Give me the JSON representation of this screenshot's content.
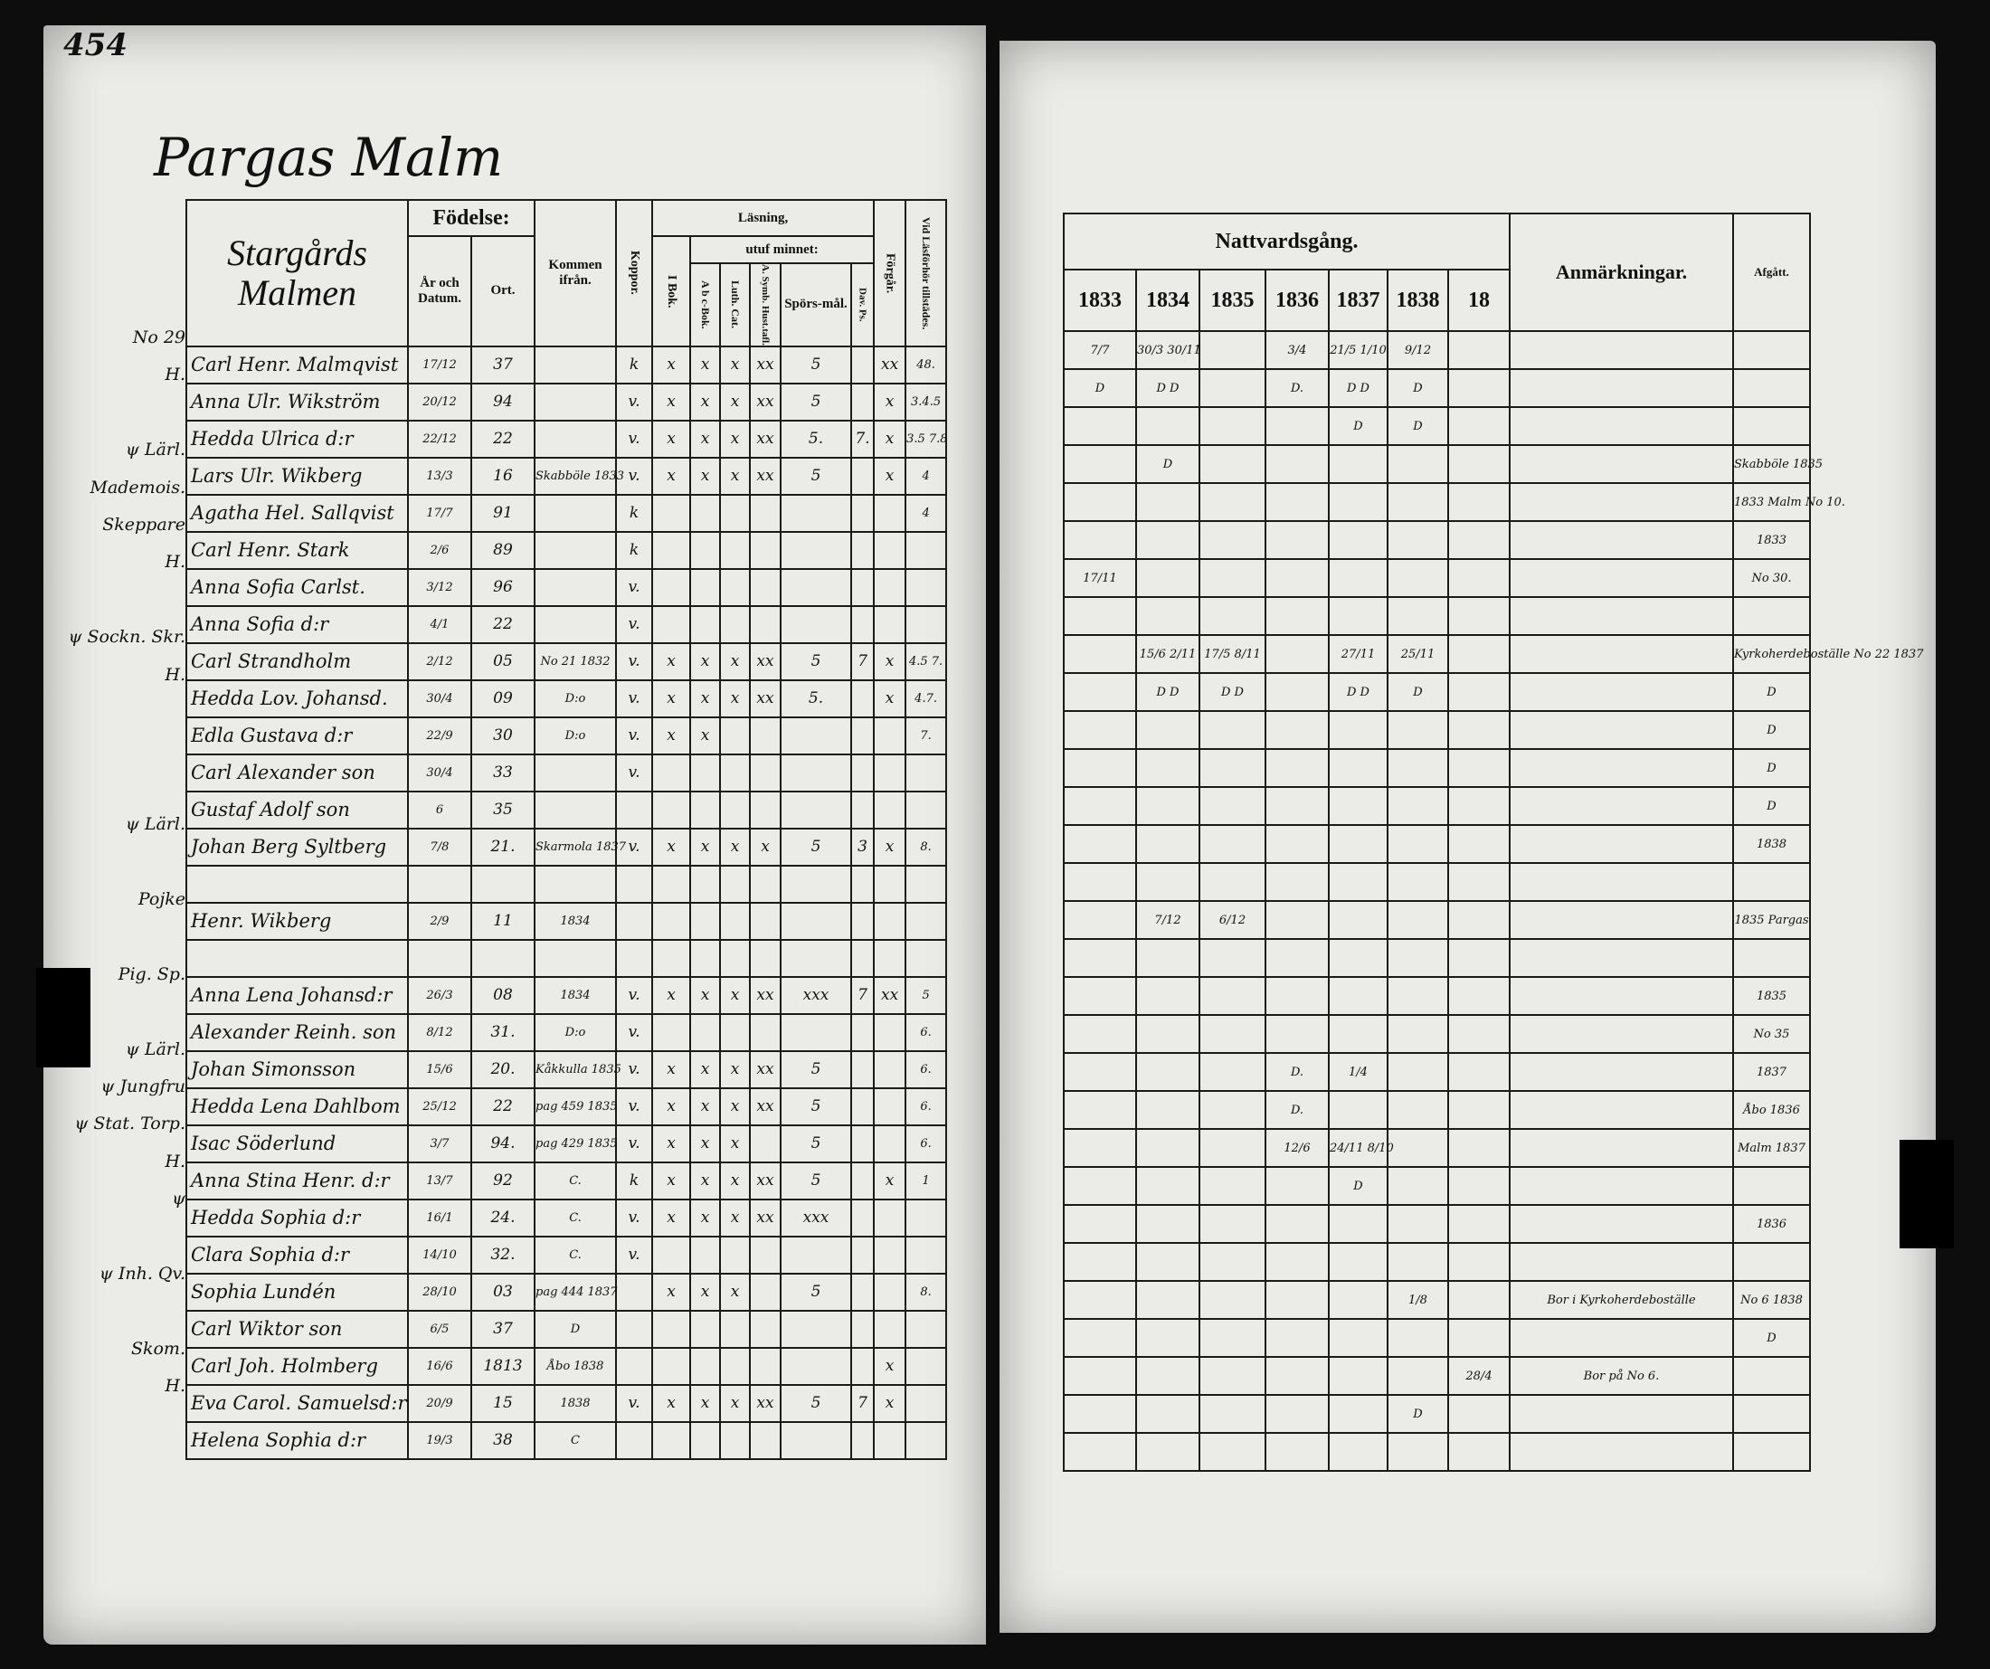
{
  "page_number": "454",
  "place_title": "Pargas Malm",
  "left_header": {
    "section": "Stargårds Malmen",
    "fodelse": "Födelse:",
    "ar_och_datum": "År och Datum.",
    "ort": "Ort.",
    "kommen_ifran": "Kommen ifrån.",
    "koppor": "Koppor.",
    "lasning": "Läsning,",
    "i_bok": "I Bok.",
    "utuf_minnet": "utuf minnet:",
    "abc_bok": "A b c-Bok.",
    "luth_cat": "Luth. Cat.",
    "symb": "A. Symb. Hust.tafl.",
    "sporsmal": "Spörs-mål.",
    "dav_ps": "Dav. Ps.",
    "forgar": "Förgår.",
    "vid_lasforhor": "Vid Läsförhör tillstädes."
  },
  "right_header": {
    "nattvardsgang": "Nattvardsgång.",
    "years": [
      "1833",
      "1834",
      "1835",
      "1836",
      "1837",
      "1838",
      "18"
    ],
    "anmarkningar": "Anmärkningar.",
    "afgatt": "Afgått."
  },
  "rows": [
    {
      "note": "No 29",
      "name": "Carl Henr. Malmqvist",
      "dm": "17/12",
      "yr": "37",
      "kom": "",
      "kop": "k",
      "bok": "x",
      "abc": "x",
      "luth": "x",
      "symb": "xx",
      "spor": "5",
      "dav": "",
      "forg": "xx",
      "vid": "48.",
      "n": [
        "7/7",
        "30/3 30/11",
        "",
        "3/4",
        "21/5 1/10",
        "9/12",
        ""
      ],
      "anm": "",
      "afg": ""
    },
    {
      "note": "H.",
      "name": "Anna Ulr. Wikström",
      "dm": "20/12",
      "yr": "94",
      "kom": "",
      "kop": "v.",
      "bok": "x",
      "abc": "x",
      "luth": "x",
      "symb": "xx",
      "spor": "5",
      "dav": "",
      "forg": "x",
      "vid": "3.4.5",
      "n": [
        "D",
        "D D",
        "",
        "D.",
        "D D",
        "D",
        ""
      ],
      "anm": "",
      "afg": ""
    },
    {
      "note": "",
      "name": "Hedda Ulrica d:r",
      "dm": "22/12",
      "yr": "22",
      "kom": "",
      "kop": "v.",
      "bok": "x",
      "abc": "x",
      "luth": "x",
      "symb": "xx",
      "spor": "5.",
      "dav": "7.",
      "forg": "x",
      "vid": "3.5 7.8",
      "n": [
        "",
        "",
        "",
        "",
        "D",
        "D",
        ""
      ],
      "anm": "",
      "afg": ""
    },
    {
      "note": "ψ Lärl.",
      "name": "Lars Ulr. Wikberg",
      "dm": "13/3",
      "yr": "16",
      "kom": "Skabböle 1833",
      "kop": "v.",
      "bok": "x",
      "abc": "x",
      "luth": "x",
      "symb": "xx",
      "spor": "5",
      "dav": "",
      "forg": "x",
      "vid": "4",
      "n": [
        "",
        "D",
        "",
        "",
        "",
        "",
        ""
      ],
      "anm": "",
      "afg": "Skabböle 1835"
    },
    {
      "note": "Mademois.",
      "name": "Agatha Hel. Sallqvist",
      "dm": "17/7",
      "yr": "91",
      "kom": "",
      "kop": "k",
      "bok": "",
      "abc": "",
      "luth": "",
      "symb": "",
      "spor": "",
      "dav": "",
      "forg": "",
      "vid": "4",
      "n": [
        "",
        "",
        "",
        "",
        "",
        "",
        ""
      ],
      "anm": "",
      "afg": "1833 Malm No 10."
    },
    {
      "note": "Skeppare",
      "name": "Carl Henr. Stark",
      "dm": "2/6",
      "yr": "89",
      "kom": "",
      "kop": "k",
      "bok": "",
      "abc": "",
      "luth": "",
      "symb": "",
      "spor": "",
      "dav": "",
      "forg": "",
      "vid": "",
      "n": [
        "",
        "",
        "",
        "",
        "",
        "",
        ""
      ],
      "anm": "",
      "afg": "1833"
    },
    {
      "note": "H.",
      "name": "Anna Sofia Carlst.",
      "dm": "3/12",
      "yr": "96",
      "kom": "",
      "kop": "v.",
      "bok": "",
      "abc": "",
      "luth": "",
      "symb": "",
      "spor": "",
      "dav": "",
      "forg": "",
      "vid": "",
      "n": [
        "17/11",
        "",
        "",
        "",
        "",
        "",
        ""
      ],
      "anm": "",
      "afg": "No 30."
    },
    {
      "note": "",
      "name": "Anna Sofia d:r",
      "dm": "4/1",
      "yr": "22",
      "kom": "",
      "kop": "v.",
      "bok": "",
      "abc": "",
      "luth": "",
      "symb": "",
      "spor": "",
      "dav": "",
      "forg": "",
      "vid": "",
      "n": [
        "",
        "",
        "",
        "",
        "",
        "",
        ""
      ],
      "anm": "",
      "afg": ""
    },
    {
      "note": "ψ Sockn. Skr.",
      "name": "Carl Strandholm",
      "dm": "2/12",
      "yr": "05",
      "kom": "No 21 1832",
      "kop": "v.",
      "bok": "x",
      "abc": "x",
      "luth": "x",
      "symb": "xx",
      "spor": "5",
      "dav": "7",
      "forg": "x",
      "vid": "4.5 7.",
      "n": [
        "",
        "15/6 2/11",
        "17/5 8/11",
        "",
        "27/11",
        "25/11",
        ""
      ],
      "anm": "",
      "afg": "Kyrkoherdeboställe No 22 1837"
    },
    {
      "note": "H.",
      "name": "Hedda Lov. Johansd.",
      "dm": "30/4",
      "yr": "09",
      "kom": "D:o",
      "kop": "v.",
      "bok": "x",
      "abc": "x",
      "luth": "x",
      "symb": "xx",
      "spor": "5.",
      "dav": "",
      "forg": "x",
      "vid": "4.7.",
      "n": [
        "",
        "D D",
        "D D",
        "",
        "D D",
        "D",
        ""
      ],
      "anm": "",
      "afg": "D"
    },
    {
      "note": "",
      "name": "Edla Gustava d:r",
      "dm": "22/9",
      "yr": "30",
      "kom": "D:o",
      "kop": "v.",
      "bok": "x",
      "abc": "x",
      "luth": "",
      "symb": "",
      "spor": "",
      "dav": "",
      "forg": "",
      "vid": "7.",
      "n": [
        "",
        "",
        "",
        "",
        "",
        "",
        ""
      ],
      "anm": "",
      "afg": "D"
    },
    {
      "note": "",
      "name": "Carl Alexander son",
      "dm": "30/4",
      "yr": "33",
      "kom": "",
      "kop": "v.",
      "bok": "",
      "abc": "",
      "luth": "",
      "symb": "",
      "spor": "",
      "dav": "",
      "forg": "",
      "vid": "",
      "n": [
        "",
        "",
        "",
        "",
        "",
        "",
        ""
      ],
      "anm": "",
      "afg": "D"
    },
    {
      "note": "",
      "name": "Gustaf Adolf son",
      "dm": "6",
      "yr": "35",
      "kom": "",
      "kop": "",
      "bok": "",
      "abc": "",
      "luth": "",
      "symb": "",
      "spor": "",
      "dav": "",
      "forg": "",
      "vid": "",
      "n": [
        "",
        "",
        "",
        "",
        "",
        "",
        ""
      ],
      "anm": "",
      "afg": "D"
    },
    {
      "note": "ψ Lärl.",
      "name": "Johan Berg Syltberg",
      "dm": "7/8",
      "yr": "21.",
      "kom": "Skarmola 1837",
      "kop": "v.",
      "bok": "x",
      "abc": "x",
      "luth": "x",
      "symb": "x",
      "spor": "5",
      "dav": "3",
      "forg": "x",
      "vid": "8.",
      "n": [
        "",
        "",
        "",
        "",
        "",
        "",
        ""
      ],
      "anm": "",
      "afg": "1838"
    },
    {
      "note": "",
      "name": "",
      "dm": "",
      "yr": "",
      "kom": "",
      "kop": "",
      "bok": "",
      "abc": "",
      "luth": "",
      "symb": "",
      "spor": "",
      "dav": "",
      "forg": "",
      "vid": "",
      "n": [
        "",
        "",
        "",
        "",
        "",
        "",
        ""
      ],
      "anm": "",
      "afg": ""
    },
    {
      "note": "Pojke",
      "name": "Henr. Wikberg",
      "dm": "2/9",
      "yr": "11",
      "kom": "1834",
      "kop": "",
      "bok": "",
      "abc": "",
      "luth": "",
      "symb": "",
      "spor": "",
      "dav": "",
      "forg": "",
      "vid": "",
      "n": [
        "",
        "7/12",
        "6/12",
        "",
        "",
        "",
        ""
      ],
      "anm": "",
      "afg": "1835 Pargas"
    },
    {
      "note": "",
      "name": "",
      "dm": "",
      "yr": "",
      "kom": "",
      "kop": "",
      "bok": "",
      "abc": "",
      "luth": "",
      "symb": "",
      "spor": "",
      "dav": "",
      "forg": "",
      "vid": "",
      "n": [
        "",
        "",
        "",
        "",
        "",
        "",
        ""
      ],
      "anm": "",
      "afg": ""
    },
    {
      "note": "Pig. Sp.",
      "name": "Anna Lena Johansd:r",
      "dm": "26/3",
      "yr": "08",
      "kom": "1834",
      "kop": "v.",
      "bok": "x",
      "abc": "x",
      "luth": "x",
      "symb": "xx",
      "spor": "xxx",
      "dav": "7",
      "forg": "xx",
      "vid": "5",
      "n": [
        "",
        "",
        "",
        "",
        "",
        "",
        ""
      ],
      "anm": "",
      "afg": "1835"
    },
    {
      "note": "",
      "name": "Alexander Reinh. son",
      "dm": "8/12",
      "yr": "31.",
      "kom": "D:o",
      "kop": "v.",
      "bok": "",
      "abc": "",
      "luth": "",
      "symb": "",
      "spor": "",
      "dav": "",
      "forg": "",
      "vid": "6.",
      "n": [
        "",
        "",
        "",
        "",
        "",
        "",
        ""
      ],
      "anm": "",
      "afg": "No 35"
    },
    {
      "note": "ψ Lärl.",
      "name": "Johan Simonsson",
      "dm": "15/6",
      "yr": "20.",
      "kom": "Kåkkulla 1835",
      "kop": "v.",
      "bok": "x",
      "abc": "x",
      "luth": "x",
      "symb": "xx",
      "spor": "5",
      "dav": "",
      "forg": "",
      "vid": "6.",
      "n": [
        "",
        "",
        "",
        "D.",
        "1/4",
        "",
        ""
      ],
      "anm": "",
      "afg": "1837"
    },
    {
      "note": "ψ Jungfru",
      "name": "Hedda Lena Dahlbom",
      "dm": "25/12",
      "yr": "22",
      "kom": "pag 459 1835",
      "kop": "v.",
      "bok": "x",
      "abc": "x",
      "luth": "x",
      "symb": "xx",
      "spor": "5",
      "dav": "",
      "forg": "",
      "vid": "6.",
      "n": [
        "",
        "",
        "",
        "D.",
        "",
        "",
        ""
      ],
      "anm": "",
      "afg": "Åbo 1836"
    },
    {
      "note": "ψ Stat. Torp.",
      "name": "Isac Söderlund",
      "dm": "3/7",
      "yr": "94.",
      "kom": "pag 429 1835",
      "kop": "v.",
      "bok": "x",
      "abc": "x",
      "luth": "x",
      "symb": "",
      "spor": "5",
      "dav": "",
      "forg": "",
      "vid": "6.",
      "n": [
        "",
        "",
        "",
        "12/6",
        "24/11 8/10",
        "",
        ""
      ],
      "anm": "",
      "afg": "Malm 1837"
    },
    {
      "note": "H.",
      "name": "Anna Stina Henr. d:r",
      "dm": "13/7",
      "yr": "92",
      "kom": "C.",
      "kop": "k",
      "bok": "x",
      "abc": "x",
      "luth": "x",
      "symb": "xx",
      "spor": "5",
      "dav": "",
      "forg": "x",
      "vid": "1",
      "n": [
        "",
        "",
        "",
        "",
        "D",
        "",
        ""
      ],
      "anm": "",
      "afg": ""
    },
    {
      "note": "ψ",
      "name": "Hedda Sophia d:r",
      "dm": "16/1",
      "yr": "24.",
      "kom": "C.",
      "kop": "v.",
      "bok": "x",
      "abc": "x",
      "luth": "x",
      "symb": "xx",
      "spor": "xxx",
      "dav": "",
      "forg": "",
      "vid": "",
      "n": [
        "",
        "",
        "",
        "",
        "",
        "",
        ""
      ],
      "anm": "",
      "afg": "1836"
    },
    {
      "note": "",
      "name": "Clara Sophia d:r",
      "dm": "14/10",
      "yr": "32.",
      "kom": "C.",
      "kop": "v.",
      "bok": "",
      "abc": "",
      "luth": "",
      "symb": "",
      "spor": "",
      "dav": "",
      "forg": "",
      "vid": "",
      "n": [
        "",
        "",
        "",
        "",
        "",
        "",
        ""
      ],
      "anm": "",
      "afg": ""
    },
    {
      "note": "ψ Inh. Qv.",
      "name": "Sophia Lundén",
      "dm": "28/10",
      "yr": "03",
      "kom": "pag 444 1837",
      "kop": "",
      "bok": "x",
      "abc": "x",
      "luth": "x",
      "symb": "",
      "spor": "5",
      "dav": "",
      "forg": "",
      "vid": "8.",
      "n": [
        "",
        "",
        "",
        "",
        "",
        "1/8",
        ""
      ],
      "anm": "Bor i Kyrkoherdeboställe",
      "afg": "No 6 1838"
    },
    {
      "note": "",
      "name": "Carl Wiktor son",
      "dm": "6/5",
      "yr": "37",
      "kom": "D",
      "kop": "",
      "bok": "",
      "abc": "",
      "luth": "",
      "symb": "",
      "spor": "",
      "dav": "",
      "forg": "",
      "vid": "",
      "n": [
        "",
        "",
        "",
        "",
        "",
        "",
        ""
      ],
      "anm": "",
      "afg": "D"
    },
    {
      "note": "Skom.",
      "name": "Carl Joh. Holmberg",
      "dm": "16/6",
      "yr": "1813",
      "kom": "Åbo 1838",
      "kop": "",
      "bok": "",
      "abc": "",
      "luth": "",
      "symb": "",
      "spor": "",
      "dav": "",
      "forg": "x",
      "vid": "",
      "n": [
        "",
        "",
        "",
        "",
        "",
        "",
        "28/4"
      ],
      "anm": "Bor på No 6.",
      "afg": ""
    },
    {
      "note": "H.",
      "name": "Eva Carol. Samuelsd:r",
      "dm": "20/9",
      "yr": "15",
      "kom": "1838",
      "kop": "v.",
      "bok": "x",
      "abc": "x",
      "luth": "x",
      "symb": "xx",
      "spor": "5",
      "dav": "7",
      "forg": "x",
      "vid": "",
      "n": [
        "",
        "",
        "",
        "",
        "",
        "D",
        ""
      ],
      "anm": "",
      "afg": ""
    },
    {
      "note": "",
      "name": "Helena Sophia d:r",
      "dm": "19/3",
      "yr": "38",
      "kom": "C",
      "kop": "",
      "bok": "",
      "abc": "",
      "luth": "",
      "symb": "",
      "spor": "",
      "dav": "",
      "forg": "",
      "vid": "",
      "n": [
        "",
        "",
        "",
        "",
        "",
        "",
        ""
      ],
      "anm": "",
      "afg": ""
    }
  ],
  "colors": {
    "paper": "#ebebe8",
    "ink": "#111111",
    "background": "#0d0d0d"
  }
}
